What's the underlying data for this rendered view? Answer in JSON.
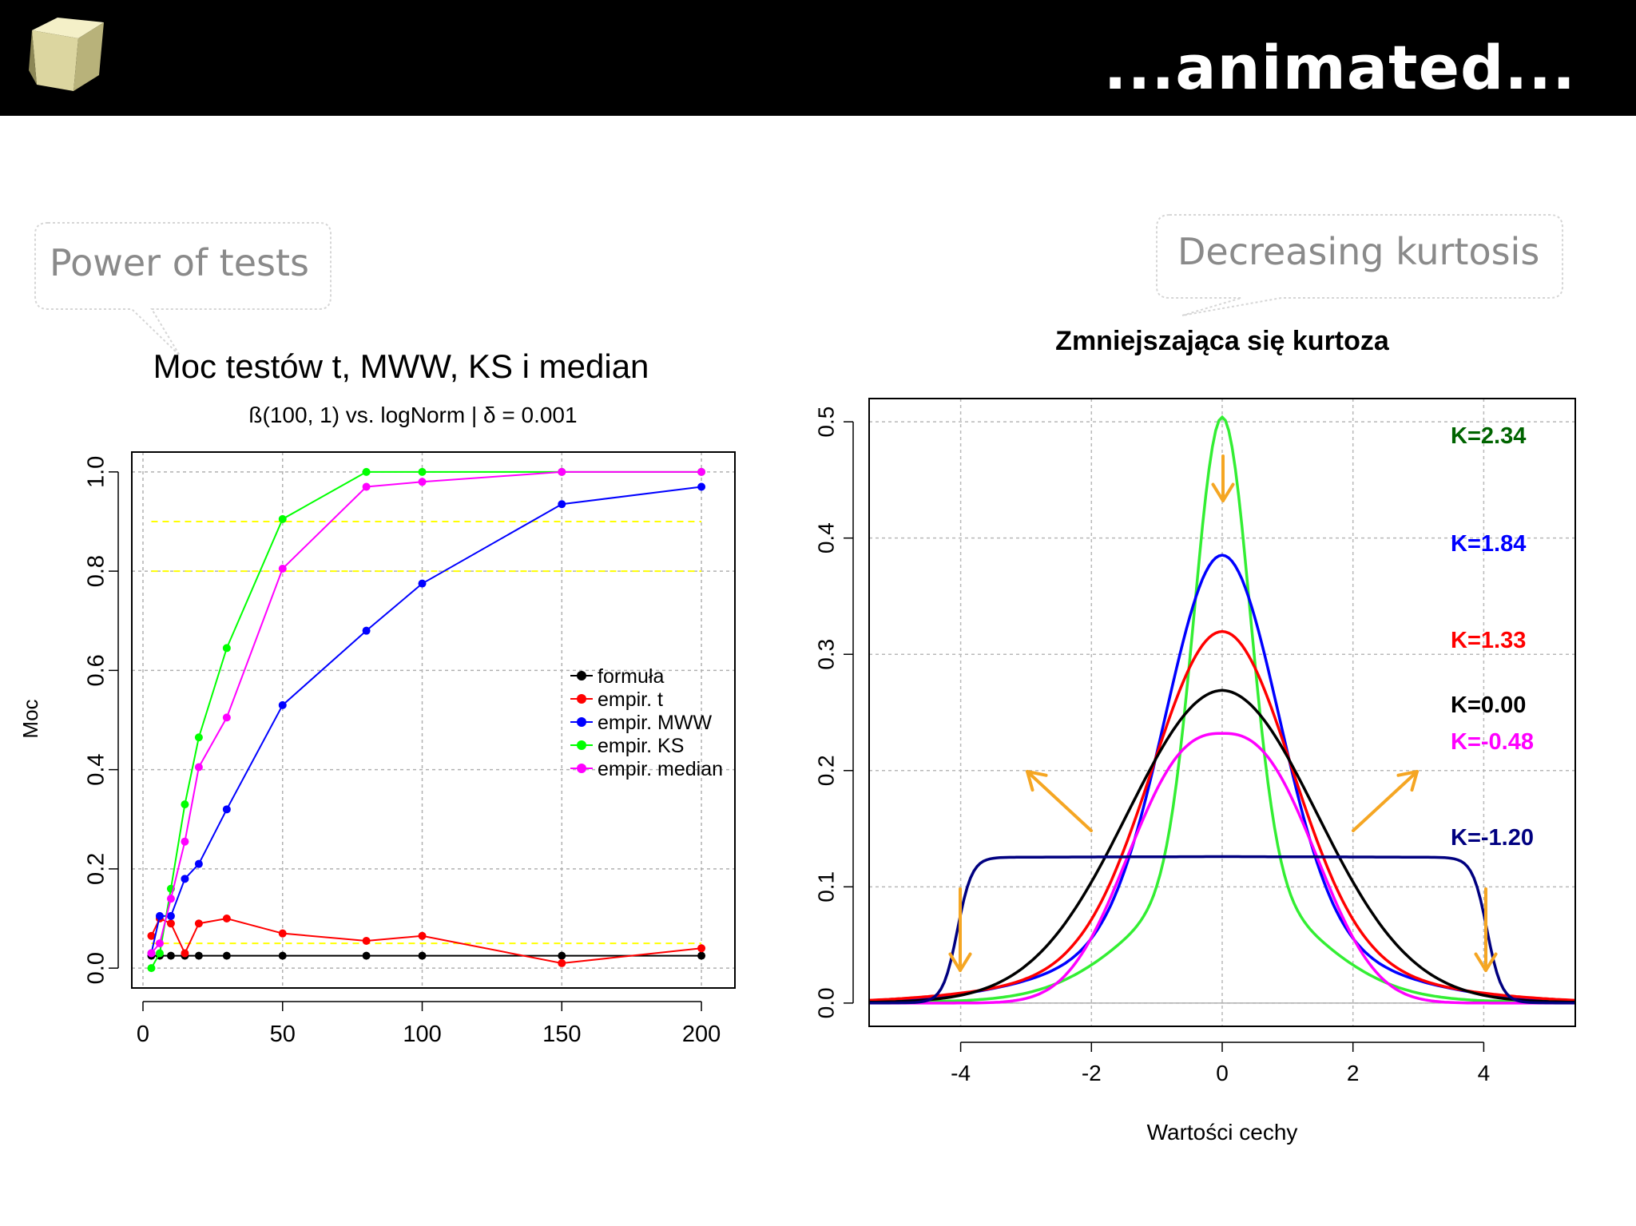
{
  "header": {
    "title": "...animated..."
  },
  "callouts": {
    "left": "Power of tests",
    "right": "Decreasing kurtosis"
  },
  "colors": {
    "header_bg": "#000000",
    "header_text": "#ffffff",
    "orange_arrows": "#f5a623"
  },
  "chart_data": [
    {
      "type": "line",
      "title": "Moc testów t, MWW, KS i median",
      "subtitle": "ß(100, 1)  vs.  logNorm  |  δ  =  0.001",
      "xlabel": "",
      "ylabel": "Moc",
      "xlim": [
        -4,
        212
      ],
      "ylim": [
        -0.04,
        1.04
      ],
      "xticks": [
        "0",
        "50",
        "100",
        "150",
        "200"
      ],
      "yticks": [
        "0.0",
        "0.2",
        "0.4",
        "0.6",
        "0.8",
        "1.0"
      ],
      "grid": true,
      "legend_position": "right-middle",
      "reference_lines": [
        0.9,
        0.8,
        0.05
      ],
      "reference_color": "#ffff00",
      "series": [
        {
          "name": "formuła",
          "color": "#000000",
          "x": [
            3,
            6,
            10,
            15,
            20,
            30,
            50,
            80,
            100,
            150,
            200
          ],
          "y": [
            0.025,
            0.025,
            0.025,
            0.025,
            0.025,
            0.025,
            0.025,
            0.025,
            0.025,
            0.025,
            0.025
          ]
        },
        {
          "name": "empir. t",
          "color": "#ff0000",
          "x": [
            3,
            6,
            10,
            15,
            20,
            30,
            50,
            80,
            100,
            150,
            200
          ],
          "y": [
            0.065,
            0.1,
            0.09,
            0.03,
            0.09,
            0.1,
            0.07,
            0.055,
            0.065,
            0.01,
            0.04
          ]
        },
        {
          "name": "empir. MWW",
          "color": "#0000ff",
          "x": [
            3,
            6,
            10,
            15,
            20,
            30,
            50,
            80,
            100,
            150,
            200
          ],
          "y": [
            0.03,
            0.105,
            0.105,
            0.18,
            0.21,
            0.32,
            0.53,
            0.68,
            0.775,
            0.935,
            0.97
          ]
        },
        {
          "name": "empir. KS",
          "color": "#00ff00",
          "x": [
            3,
            6,
            10,
            15,
            20,
            30,
            50,
            80,
            100,
            150,
            200
          ],
          "y": [
            0.0,
            0.03,
            0.16,
            0.33,
            0.465,
            0.645,
            0.905,
            1.0,
            1.0,
            1.0,
            1.0
          ]
        },
        {
          "name": "empir. median",
          "color": "#ff00ff",
          "x": [
            3,
            6,
            10,
            15,
            20,
            30,
            50,
            80,
            100,
            150,
            200
          ],
          "y": [
            0.03,
            0.05,
            0.14,
            0.255,
            0.405,
            0.505,
            0.805,
            0.97,
            0.98,
            1.0,
            1.0
          ]
        }
      ]
    },
    {
      "type": "line",
      "title": "Zmniejszająca się kurtoza",
      "xlabel": "Wartości cechy",
      "ylabel": "",
      "xlim": [
        -5.4,
        5.4
      ],
      "ylim": [
        -0.02,
        0.52
      ],
      "xticks": [
        "-4",
        "-2",
        "0",
        "2",
        "4"
      ],
      "yticks": [
        "0.0",
        "0.1",
        "0.2",
        "0.3",
        "0.4",
        "0.5"
      ],
      "grid": true,
      "series": [
        {
          "name": "K=2.34",
          "color": "#006400",
          "line_color": "#33ee33",
          "peak": 0.5
        },
        {
          "name": "K=1.84",
          "color": "#0000ff",
          "line_color": "#0000ff",
          "peak": 0.385
        },
        {
          "name": "K=1.33",
          "color": "#ff0000",
          "line_color": "#ff0000",
          "peak": 0.32
        },
        {
          "name": "K=0.00",
          "color": "#000000",
          "line_color": "#000000",
          "peak": 0.265
        },
        {
          "name": "K=-0.48",
          "color": "#ff00ff",
          "line_color": "#ff00ff",
          "peak": 0.232
        },
        {
          "name": "K=-1.20",
          "color": "#000080",
          "line_color": "#000080",
          "peak": 0.125
        }
      ]
    }
  ]
}
